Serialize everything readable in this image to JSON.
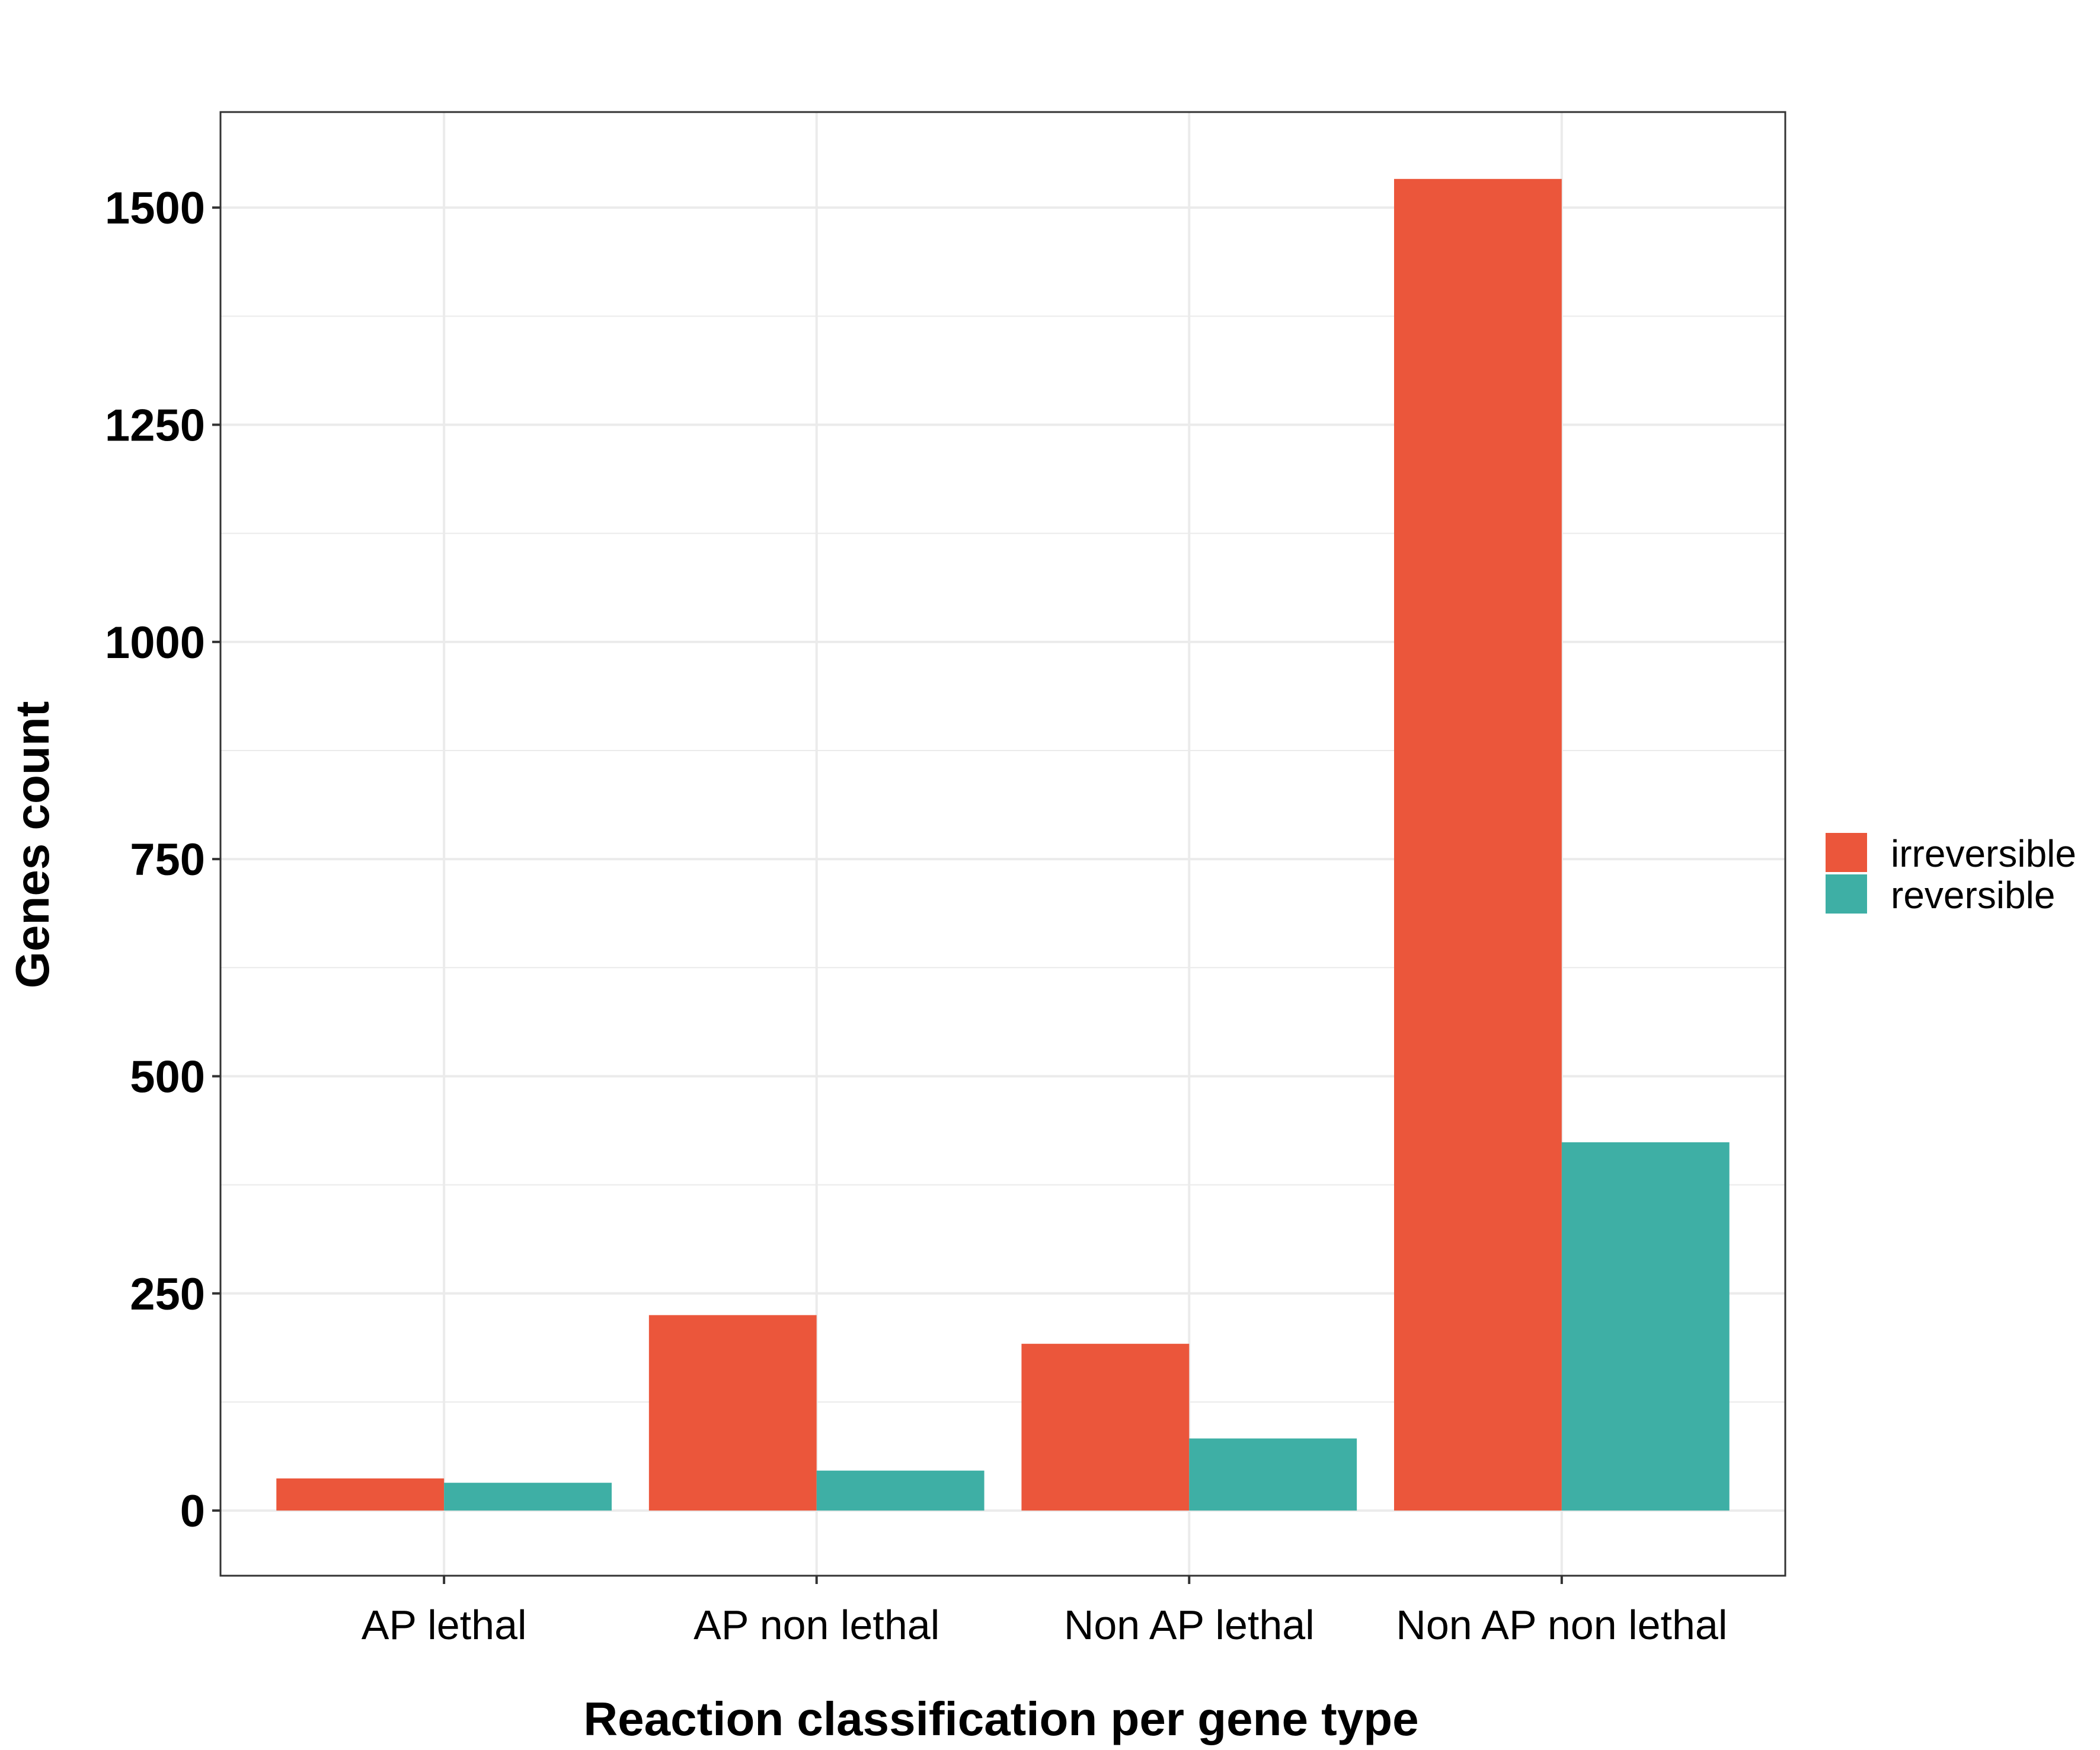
{
  "chart_data": {
    "type": "bar",
    "title": "",
    "xlabel": "Reaction classification per gene type",
    "ylabel": "Genes count",
    "categories": [
      "AP lethal",
      "AP non lethal",
      "Non AP lethal",
      "Non AP non lethal"
    ],
    "series": [
      {
        "name": "irreversible",
        "color": "#EB563B",
        "values": [
          37,
          225,
          192,
          1533
        ]
      },
      {
        "name": "reversible",
        "color": "#3EAFA5",
        "values": [
          32,
          46,
          83,
          424
        ]
      }
    ],
    "ylim": [
      -75,
      1610
    ],
    "yticks": [
      0,
      250,
      500,
      750,
      1000,
      1250,
      1500
    ],
    "ytick_labels": [
      "0",
      "250",
      "500",
      "750",
      "1000",
      "1250",
      "1500"
    ],
    "grid": true,
    "legend_position": "right",
    "colors": {
      "panel_border": "#333333",
      "grid": "#EBEBEB",
      "background": "#FFFFFF"
    }
  }
}
